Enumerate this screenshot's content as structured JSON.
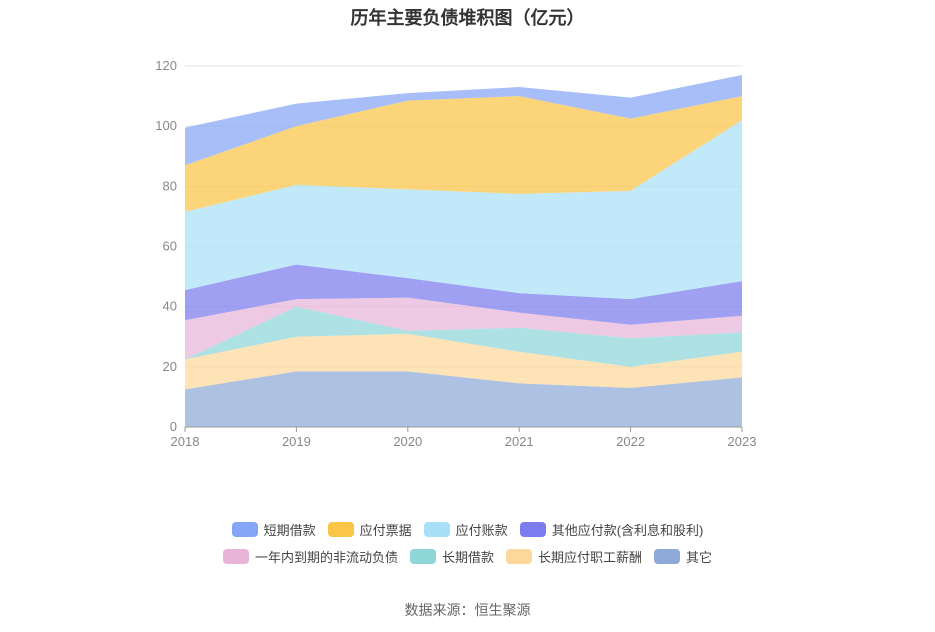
{
  "chart_data": {
    "type": "area",
    "title": "历年主要负债堆积图（亿元）",
    "x": [
      "2018",
      "2019",
      "2020",
      "2021",
      "2022",
      "2023"
    ],
    "ylim": [
      0,
      120
    ],
    "yticks": [
      0,
      20,
      40,
      60,
      80,
      100,
      120
    ],
    "stacked": true,
    "grid": true,
    "legend_position": "bottom",
    "series": [
      {
        "name": "其它",
        "color": "#8eaad8",
        "values": [
          12.5,
          18.5,
          18.5,
          14.5,
          13.0,
          16.5
        ]
      },
      {
        "name": "长期应付职工薪酬",
        "color": "#fcd89a",
        "values": [
          10.0,
          11.5,
          12.5,
          10.5,
          7.0,
          8.5
        ]
      },
      {
        "name": "长期借款",
        "color": "#8fd6d8",
        "values": [
          0.0,
          10.0,
          1.0,
          8.0,
          9.5,
          6.5
        ]
      },
      {
        "name": "一年内到期的非流动负债",
        "color": "#e8b4d8",
        "values": [
          13.0,
          2.5,
          11.0,
          5.0,
          4.5,
          5.5
        ]
      },
      {
        "name": "其他应付款(含利息和股利)",
        "color": "#7b7cee",
        "values": [
          10.0,
          11.5,
          6.5,
          6.5,
          8.5,
          11.5
        ]
      },
      {
        "name": "应付账款",
        "color": "#a9e0f8",
        "values": [
          26.0,
          26.5,
          29.5,
          33.0,
          36.0,
          53.5
        ]
      },
      {
        "name": "应付票据",
        "color": "#fbc547",
        "values": [
          15.5,
          19.5,
          29.5,
          32.5,
          24.0,
          8.0
        ]
      },
      {
        "name": "短期借款",
        "color": "#85a5f7",
        "values": [
          12.5,
          7.5,
          2.5,
          3.0,
          7.0,
          7.0
        ]
      }
    ]
  },
  "legend": {
    "row1": [
      {
        "label": "短期借款",
        "color": "#85a5f7"
      },
      {
        "label": "应付票据",
        "color": "#fbc547"
      },
      {
        "label": "应付账款",
        "color": "#a9e0f8"
      },
      {
        "label": "其他应付款(含利息和股利)",
        "color": "#7b7cee"
      }
    ],
    "row2": [
      {
        "label": "一年内到期的非流动负债",
        "color": "#e8b4d8"
      },
      {
        "label": "长期借款",
        "color": "#8fd6d8"
      },
      {
        "label": "长期应付职工薪酬",
        "color": "#fcd89a"
      },
      {
        "label": "其它",
        "color": "#8eaad8"
      }
    ]
  },
  "source": "数据来源：恒生聚源"
}
